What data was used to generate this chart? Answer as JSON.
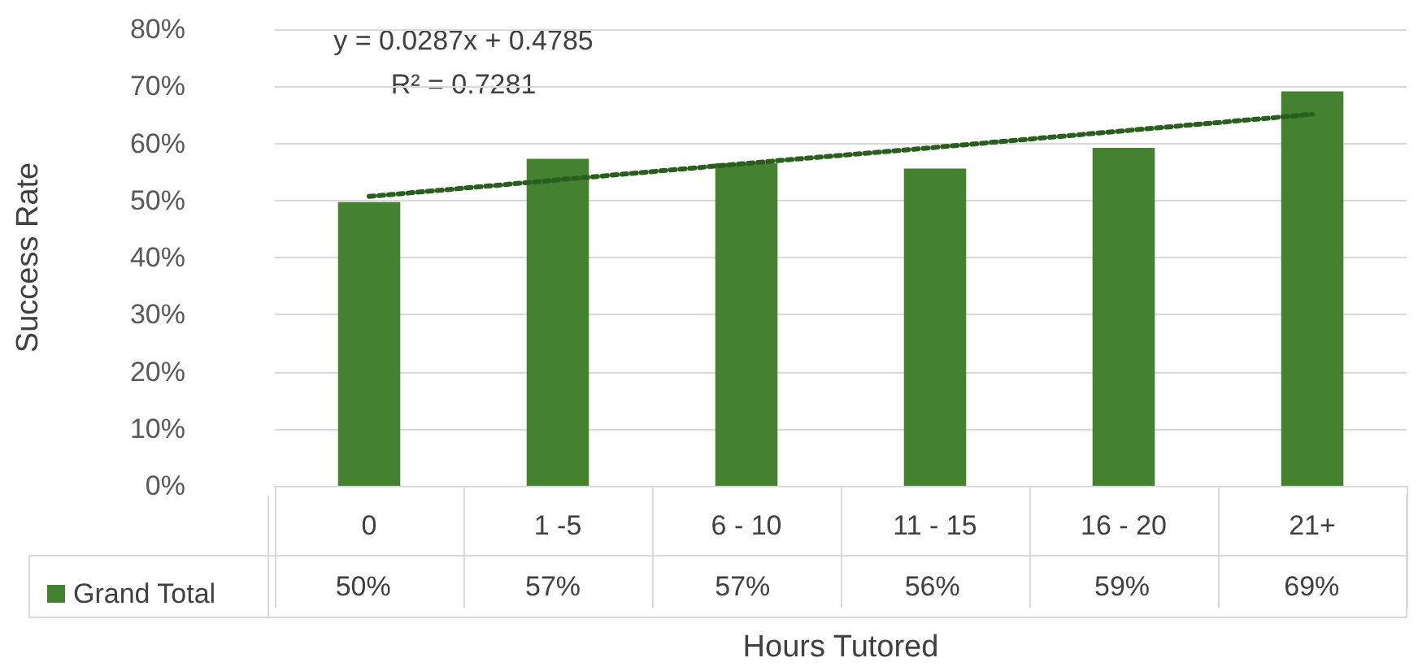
{
  "chart_data": {
    "type": "bar",
    "xlabel": "Hours Tutored",
    "ylabel": "Success Rate",
    "categories": [
      "0",
      "1 -5",
      "6 - 10",
      "11 - 15",
      "16 - 20",
      "21+"
    ],
    "series": [
      {
        "name": "Grand Total",
        "color": "#448130",
        "values": [
          49.7,
          57.3,
          56.5,
          55.6,
          59.2,
          69.1
        ],
        "value_labels": [
          "50%",
          "57%",
          "57%",
          "56%",
          "59%",
          "69%"
        ]
      },
      {
        "type": "line",
        "x": [
          "0",
          "1 -5",
          "6 - 10",
          "11 - 15",
          "16 - 20",
          "21+"
        ],
        "color": "#2a5e1f",
        "line_style": "dotted",
        "marker": "none",
        "values": [
          50.7,
          53.6,
          56.5,
          59.3,
          62.2,
          65.1
        ]
      }
    ],
    "ylim": [
      0,
      80
    ],
    "yticks": [
      {
        "value": 0,
        "label": "0%"
      },
      {
        "value": 10,
        "label": "10%"
      },
      {
        "value": 20,
        "label": "20%"
      },
      {
        "value": 30,
        "label": "30%"
      },
      {
        "value": 40,
        "label": "40%"
      },
      {
        "value": 50,
        "label": "50%"
      },
      {
        "value": 60,
        "label": "60%"
      },
      {
        "value": 70,
        "label": "70%"
      },
      {
        "value": 80,
        "label": "80%"
      }
    ],
    "grid": "y",
    "legend": "bottom left",
    "annotations": [
      "y = 0.0287x + 0.4785",
      "R² = 0.7281"
    ]
  }
}
